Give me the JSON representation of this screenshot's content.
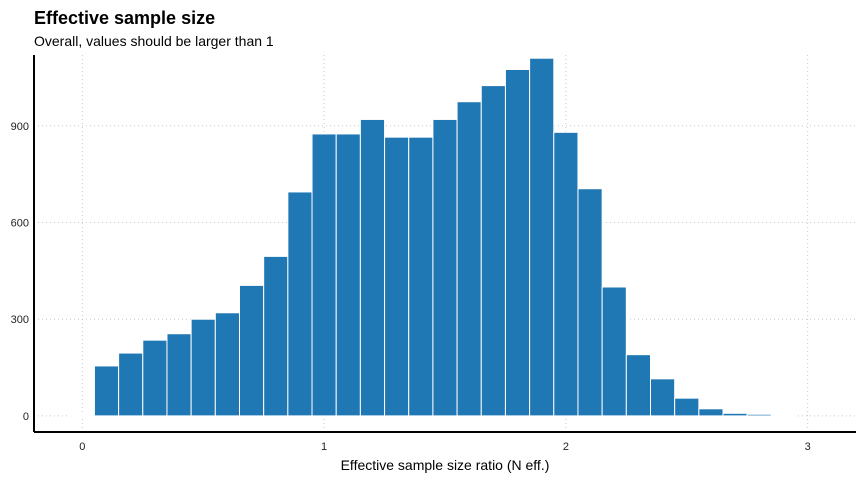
{
  "chart_data": {
    "type": "bar",
    "title": "Effective sample size",
    "subtitle": "Overall, values should be larger than 1",
    "xlabel": "Effective sample size ratio (N eff.)",
    "ylabel": "",
    "bar_color": "#1f77b4",
    "grid_color": "#c8c8c8",
    "xlim": [
      -0.2,
      3.2
    ],
    "ylim": [
      -50,
      1120
    ],
    "x_ticks": [
      0,
      1,
      2,
      3
    ],
    "y_ticks": [
      0,
      300,
      600,
      900
    ],
    "bin_width": 0.1,
    "bin_starts": [
      -0.05,
      0.05,
      0.15,
      0.25,
      0.35,
      0.45,
      0.55,
      0.65,
      0.75,
      0.85,
      0.95,
      1.05,
      1.15,
      1.25,
      1.35,
      1.45,
      1.55,
      1.65,
      1.75,
      1.85,
      1.95,
      2.05,
      2.15,
      2.25,
      2.35,
      2.45,
      2.55,
      2.65,
      2.75,
      2.85
    ],
    "values": [
      3,
      155,
      195,
      235,
      255,
      300,
      320,
      405,
      495,
      695,
      875,
      875,
      920,
      865,
      865,
      920,
      975,
      1025,
      1075,
      1110,
      880,
      705,
      400,
      190,
      115,
      55,
      22,
      8,
      5,
      2
    ]
  }
}
